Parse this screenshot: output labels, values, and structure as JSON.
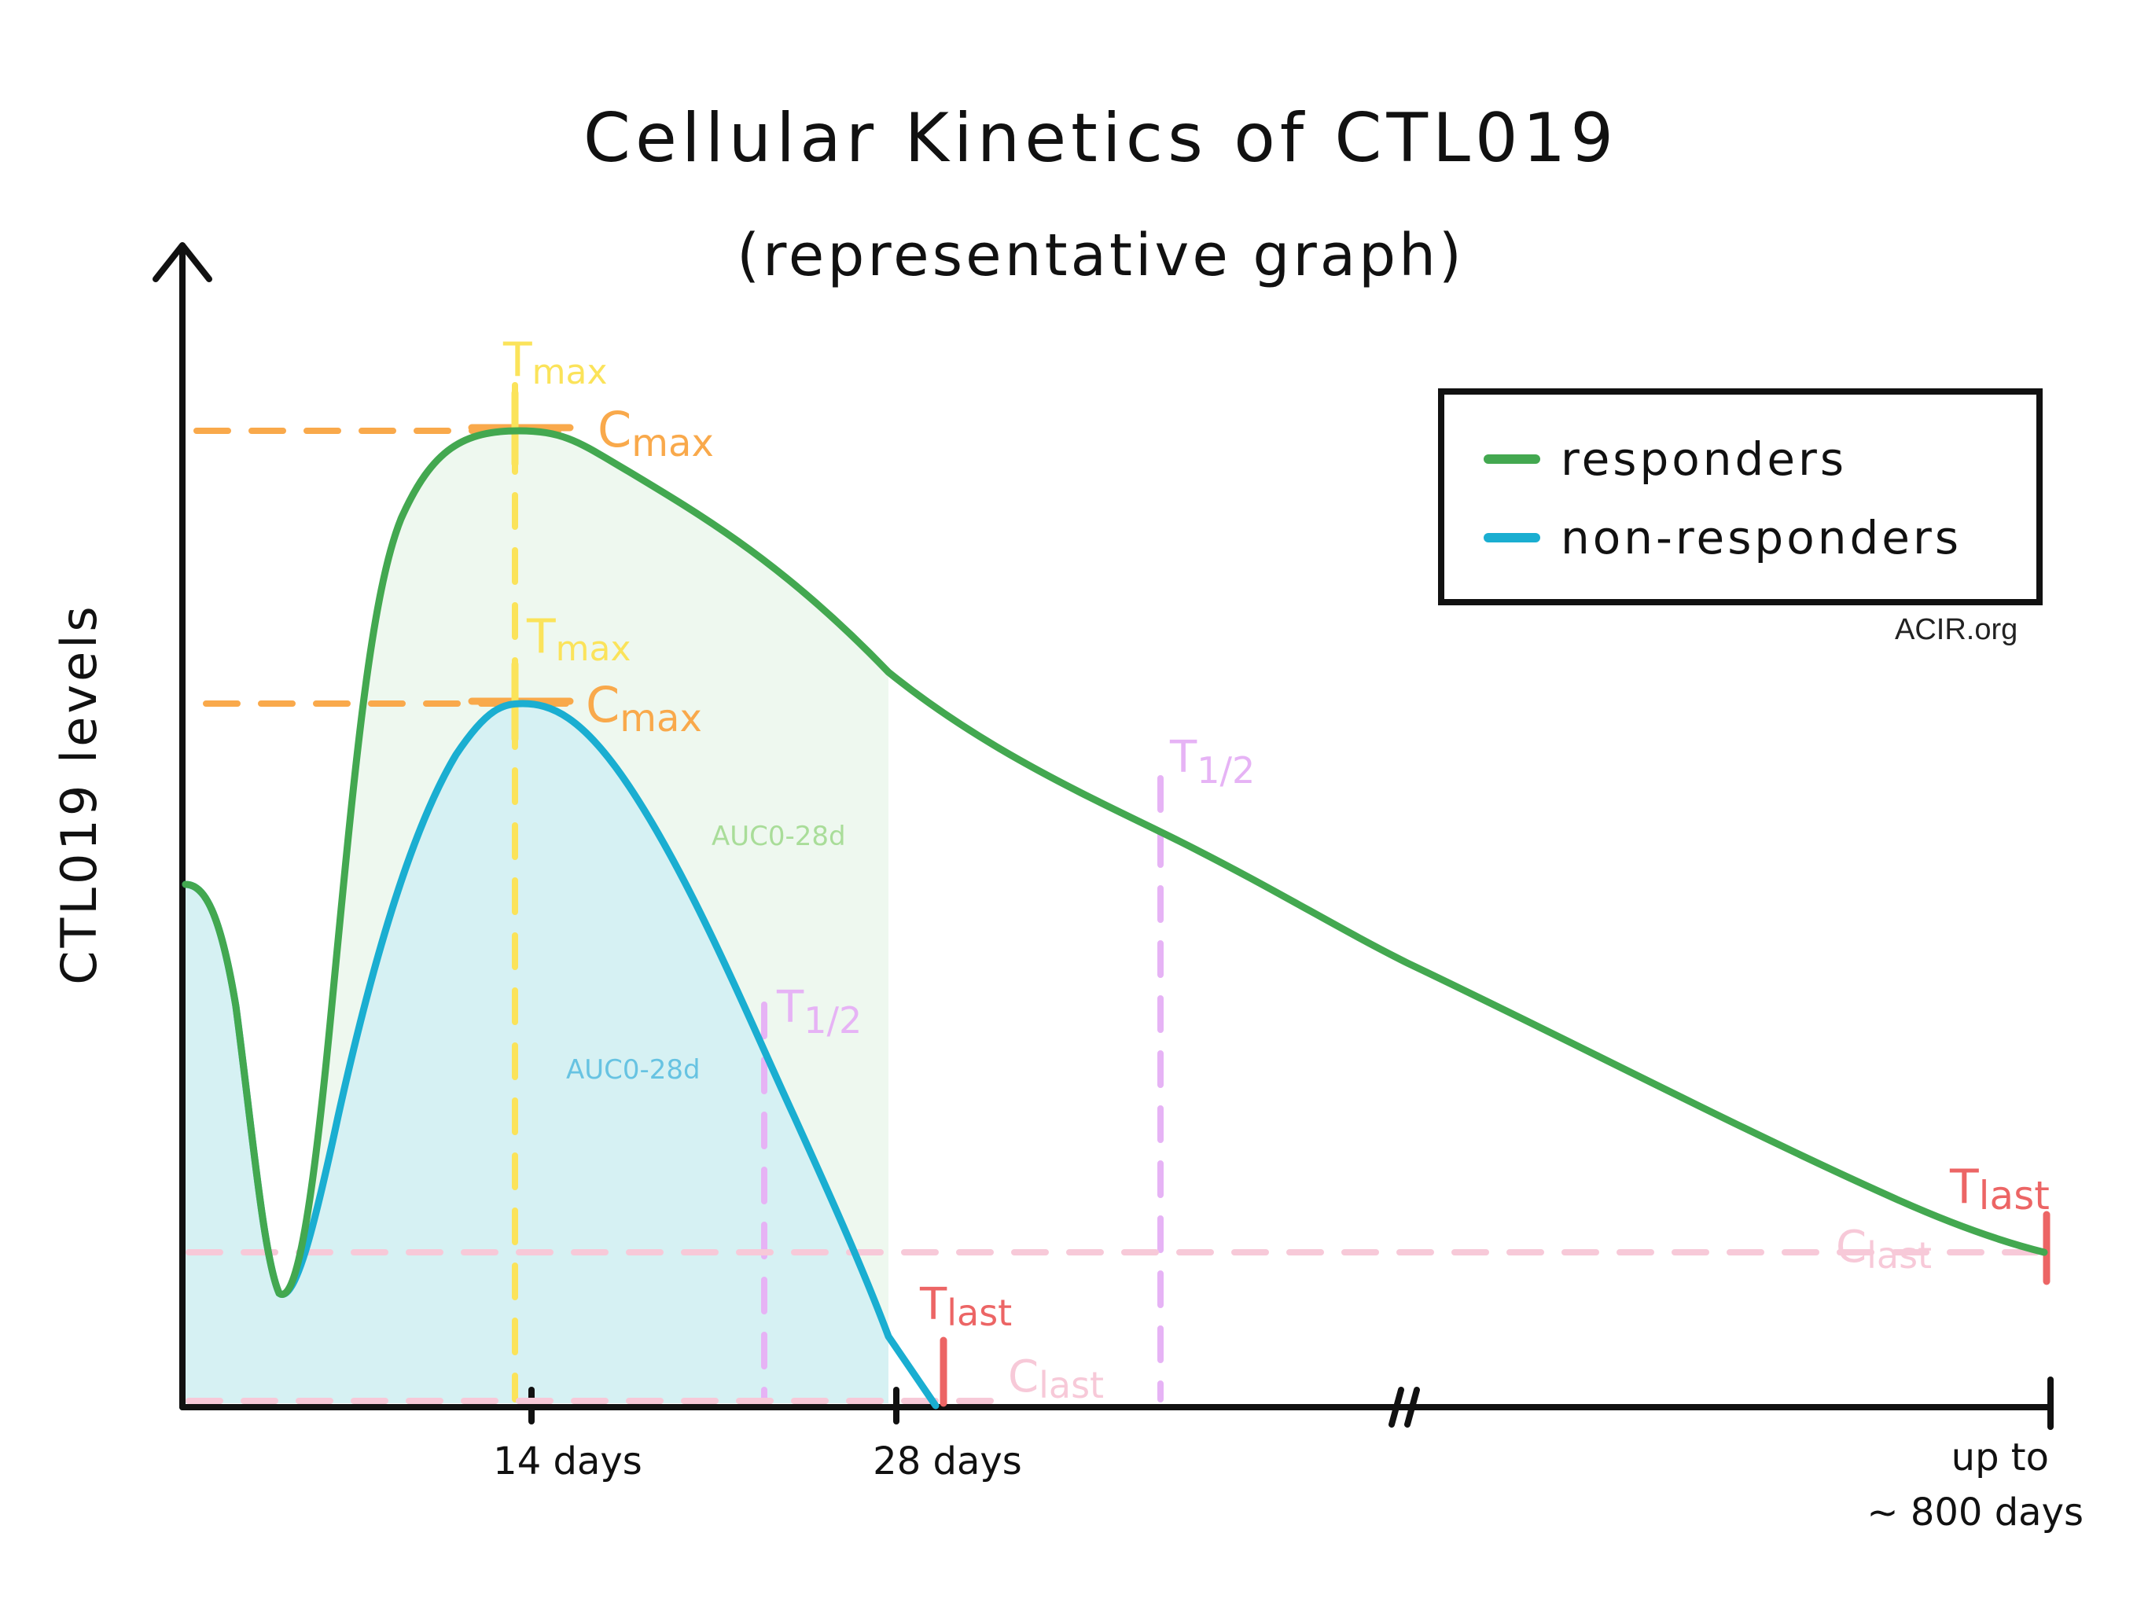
{
  "chart_data": {
    "type": "line",
    "title": "Cellular Kinetics of CTL019",
    "subtitle": "(representative graph)",
    "ylabel": "CTL019 levels",
    "xlabel": "",
    "x_ticks": [
      "14 days",
      "28 days",
      "up to",
      "~ 800 days"
    ],
    "legend_position": "top-right",
    "series": [
      {
        "name": "responders",
        "color": "#43a850"
      },
      {
        "name": "non-responders",
        "color": "#1aaed1"
      }
    ],
    "annotations": {
      "tmax_responders": "T",
      "tmax_responders_sub": "max",
      "cmax_responders": "C",
      "cmax_responders_sub": "max",
      "tmax_nonresponders": "T",
      "tmax_nonresponders_sub": "max",
      "cmax_nonresponders": "C",
      "cmax_nonresponders_sub": "max",
      "auc_responders": "AUC0-28d",
      "auc_nonresponders": "AUC0-28d",
      "thalf_nonresponders": "T",
      "thalf_nonresponders_sub": "1/2",
      "thalf_responders": "T",
      "thalf_responders_sub": "1/2",
      "tlast_nonresponders": "T",
      "tlast_nonresponders_sub": "last",
      "clast_nonresponders": "C",
      "clast_nonresponders_sub": "last",
      "tlast_responders": "T",
      "tlast_responders_sub": "last",
      "clast_responders": "C",
      "clast_responders_sub": "last"
    },
    "colors": {
      "tmax": "#fbe35a",
      "cmax": "#f9a94b",
      "thalf": "#e6b3f5",
      "tlast": "#ec6565",
      "clast": "#f7c9d8",
      "auc_responders": "#a9dd99",
      "auc_nonresponders": "#67c3e2",
      "fill_responders": "#eef8ef",
      "fill_nonresponders": "#d6f1f3"
    }
  },
  "legend": {
    "items": [
      {
        "label": "responders",
        "color": "#43a850"
      },
      {
        "label": "non-responders",
        "color": "#1aaed1"
      }
    ]
  },
  "watermark": "ACIR.org"
}
